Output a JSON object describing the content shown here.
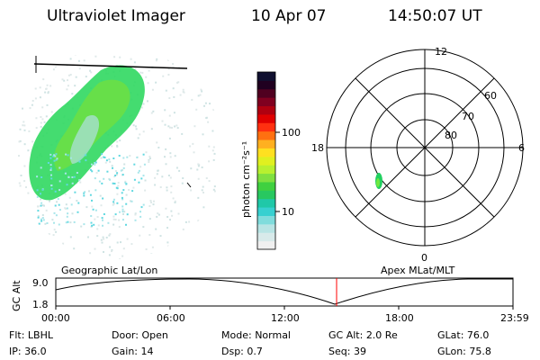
{
  "header": {
    "title": "Ultraviolet Imager",
    "date": "10 Apr 07",
    "time": "14:50:07 UT"
  },
  "colorbar": {
    "unit_label": "photon cm⁻²s⁻¹",
    "ticks": [
      {
        "label": "100",
        "value": 100
      },
      {
        "label": "10",
        "value": 10
      }
    ],
    "colors": [
      "#f0f0f0",
      "#d8eaea",
      "#b8e4e4",
      "#80dcdc",
      "#38d0d0",
      "#20c8a8",
      "#28c860",
      "#40d040",
      "#80e040",
      "#b8f030",
      "#e0f020",
      "#ffe020",
      "#ffb020",
      "#ff7010",
      "#ff3010",
      "#e00000",
      "#b00010",
      "#800020",
      "#500020",
      "#200020",
      "#101030"
    ]
  },
  "polar": {
    "mlt_labels": {
      "top": "12",
      "left": "18",
      "right": "6",
      "bottom": "0"
    },
    "lat_labels": [
      "60",
      "70",
      "80"
    ],
    "colors": {
      "aurora": "#22d060"
    }
  },
  "timeline": {
    "left_label": "Geographic Lat/Lon",
    "right_label": "Apex MLat/MLT",
    "axis_title": "GC Alt",
    "y_labels": [
      "9.0",
      "1.8"
    ],
    "x_labels": [
      "00:00",
      "06:00",
      "12:00",
      "18:00",
      "23:59"
    ],
    "current_time_color": "#ff0000"
  },
  "info": [
    [
      {
        "label": "Flt:",
        "value": "LBHL"
      },
      {
        "label": "Door:",
        "value": "Open"
      },
      {
        "label": "Mode:",
        "value": "Normal"
      },
      {
        "label": "GC Alt:",
        "value": "2.0 Re"
      },
      {
        "label": "GLat:",
        "value": "76.0"
      }
    ],
    [
      {
        "label": "IP:",
        "value": "36.0"
      },
      {
        "label": "Gain:",
        "value": "14"
      },
      {
        "label": "Dsp:",
        "value": "0.7"
      },
      {
        "label": "Seq:",
        "value": "39"
      },
      {
        "label": "GLon:",
        "value": "75.8"
      }
    ]
  ]
}
